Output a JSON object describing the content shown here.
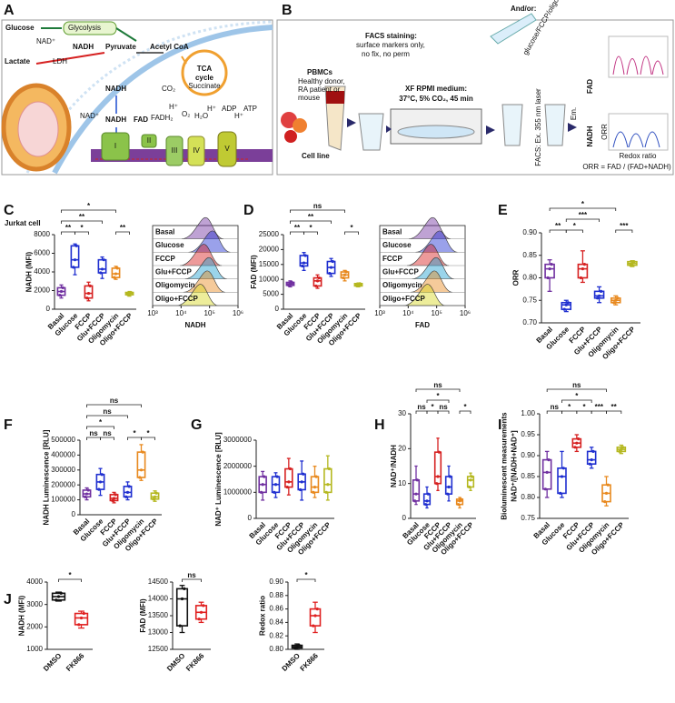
{
  "panel_labels": [
    "A",
    "B",
    "C",
    "D",
    "E",
    "F",
    "G",
    "H",
    "I",
    "J"
  ],
  "panel_a": {
    "glucose": "Glucose",
    "glycolysis": "Glycolysis",
    "nad": "NAD⁺",
    "nadh_top": "NADH",
    "pyruvate": "Pyruvate",
    "lactate": "Lactate",
    "ldh": "LDH",
    "acetyl": "Acetyl CoA",
    "tca1": "TCA",
    "tca2": "cycle",
    "succinate": "Succinate",
    "co2": "CO₂",
    "nadh_mid": "NADH",
    "nadh_low": "NADH",
    "nad_low": "NAD⁺",
    "fad": "FAD",
    "fadh2": "FADH₂",
    "h1": "H⁺",
    "o2": "O₂",
    "h2o": "H₂O",
    "h2": "H⁺",
    "adp": "ADP",
    "h3": "H⁺",
    "atp": "ATP",
    "c1": "I",
    "c2": "II",
    "c3": "III",
    "c4": "IV",
    "c5": "V"
  },
  "panel_b": {
    "pbmc": "PBMCs",
    "donor1": "Healthy donor,",
    "donor2": "RA patient or",
    "donor3": "mouse",
    "cellline": "Cell line",
    "facs1": "FACS staining:",
    "facs2": "surface markers only,",
    "facs3": "no fix, no perm",
    "xf1": "XF RPMI medium:",
    "xf2": "37°C, 5% CO₂, 45 min",
    "andor": "And/or:",
    "treat": "glucose/FCCP/oligo",
    "laser": "FACS: Ex. 355 nm laser",
    "em": "Em.",
    "fad": "FAD",
    "nadh": "NADH",
    "orr": "ORR",
    "redox": "Redox ratio",
    "formula": "ORR = FAD / (FAD+NADH)"
  },
  "chart_data": [
    {
      "type": "box",
      "note": "Jurkat cell",
      "ylabel": "NADH (MFI)",
      "categories": [
        "Basal",
        "Glucose",
        "FCCP",
        "Glu+FCCP",
        "Oligomycin",
        "Oligo+FCCP"
      ],
      "colors": [
        "#7030a0",
        "#1f2fd0",
        "#d62020",
        "#1f2fd0",
        "#e8891e",
        "#b5b820"
      ],
      "boxes": [
        {
          "min": 1200,
          "q1": 1500,
          "median": 1900,
          "q3": 2300,
          "max": 2600
        },
        {
          "min": 3700,
          "q1": 4500,
          "median": 5300,
          "q3": 6800,
          "max": 7000
        },
        {
          "min": 900,
          "q1": 1200,
          "median": 1700,
          "q3": 2500,
          "max": 2900
        },
        {
          "min": 3300,
          "q1": 3900,
          "median": 4300,
          "q3": 5300,
          "max": 5600
        },
        {
          "min": 3200,
          "q1": 3400,
          "median": 3800,
          "q3": 4400,
          "max": 4600
        },
        {
          "min": 1400,
          "q1": 1550,
          "median": 1700,
          "q3": 1800,
          "max": 1900
        }
      ],
      "ylim": [
        0,
        8000
      ],
      "yticks": [
        0,
        2000,
        4000,
        6000,
        8000
      ],
      "annotations": [
        {
          "label": "**",
          "between": [
            "Basal",
            "Glucose"
          ]
        },
        {
          "label": "*",
          "between": [
            "Glucose",
            "FCCP"
          ]
        },
        {
          "label": "**",
          "between": [
            "Oligomycin",
            "Oligo+FCCP"
          ]
        },
        {
          "label": "**",
          "between": [
            "Basal",
            "Glu+FCCP"
          ]
        },
        {
          "label": "*",
          "between": [
            "Basal",
            "Oligomycin"
          ]
        }
      ]
    },
    {
      "type": "ridgeline",
      "xlabel": "NADH",
      "categories": [
        "Basal",
        "Glucose",
        "FCCP",
        "Glu+FCCP",
        "Oligomycin",
        "Oligo+FCCP"
      ],
      "colors": [
        "#7030a0",
        "#1f2fd0",
        "#d62020",
        "#1f9fd0",
        "#e8891e",
        "#d8d820"
      ],
      "xscale": "log",
      "xlim": [
        1000,
        1000000
      ],
      "xticks": [
        {
          "value": 1000,
          "label": "10³"
        },
        {
          "value": 10000,
          "label": "10⁴"
        },
        {
          "value": 100000,
          "label": "10⁵"
        },
        {
          "value": 1000000,
          "label": "10⁶"
        }
      ]
    },
    {
      "type": "box",
      "ylabel": "FAD (MFI)",
      "categories": [
        "Basal",
        "Glucose",
        "FCCP",
        "Glu+FCCP",
        "Oligomycin",
        "Oligo+FCCP"
      ],
      "colors": [
        "#7030a0",
        "#1f2fd0",
        "#d62020",
        "#1f2fd0",
        "#e8891e",
        "#b5b820"
      ],
      "boxes": [
        {
          "min": 7500,
          "q1": 8000,
          "median": 8500,
          "q3": 9000,
          "max": 9500
        },
        {
          "min": 13000,
          "q1": 14500,
          "median": 15500,
          "q3": 18000,
          "max": 19000
        },
        {
          "min": 7000,
          "q1": 7800,
          "median": 9500,
          "q3": 10500,
          "max": 11500
        },
        {
          "min": 11000,
          "q1": 12000,
          "median": 14000,
          "q3": 16000,
          "max": 17000
        },
        {
          "min": 9500,
          "q1": 10500,
          "median": 11500,
          "q3": 12500,
          "max": 13000
        },
        {
          "min": 7500,
          "q1": 7800,
          "median": 8200,
          "q3": 8600,
          "max": 8800
        }
      ],
      "ylim": [
        0,
        25000
      ],
      "yticks": [
        0,
        5000,
        10000,
        15000,
        20000,
        25000
      ],
      "annotations": [
        {
          "label": "**",
          "between": [
            "Basal",
            "Glucose"
          ]
        },
        {
          "label": "*",
          "between": [
            "Glucose",
            "FCCP"
          ]
        },
        {
          "label": "*",
          "between": [
            "Oligomycin",
            "Oligo+FCCP"
          ]
        },
        {
          "label": "**",
          "between": [
            "Basal",
            "Glu+FCCP"
          ]
        },
        {
          "label": "ns",
          "between": [
            "Basal",
            "Oligomycin"
          ]
        }
      ]
    },
    {
      "type": "ridgeline",
      "xlabel": "FAD",
      "categories": [
        "Basal",
        "Glucose",
        "FCCP",
        "Glu+FCCP",
        "Oligomycin",
        "Oligo+FCCP"
      ],
      "colors": [
        "#7030a0",
        "#1f2fd0",
        "#d62020",
        "#1f9fd0",
        "#e8891e",
        "#d8d820"
      ],
      "xscale": "log",
      "xlim": [
        1000,
        1000000
      ],
      "xticks": [
        {
          "value": 1000,
          "label": "10³"
        },
        {
          "value": 10000,
          "label": "10⁴"
        },
        {
          "value": 100000,
          "label": "10⁵"
        },
        {
          "value": 1000000,
          "label": "10⁶"
        }
      ]
    },
    {
      "type": "box",
      "ylabel": "ORR",
      "categories": [
        "Basal",
        "Glucose",
        "FCCP",
        "Glu+FCCP",
        "Oligomycin",
        "Oligo+FCCP"
      ],
      "colors": [
        "#7030a0",
        "#1f2fd0",
        "#d62020",
        "#1f2fd0",
        "#e8891e",
        "#b5b820"
      ],
      "boxes": [
        {
          "min": 0.77,
          "q1": 0.8,
          "median": 0.82,
          "q3": 0.83,
          "max": 0.84
        },
        {
          "min": 0.725,
          "q1": 0.73,
          "median": 0.74,
          "q3": 0.745,
          "max": 0.75
        },
        {
          "min": 0.79,
          "q1": 0.8,
          "median": 0.82,
          "q3": 0.83,
          "max": 0.86
        },
        {
          "min": 0.745,
          "q1": 0.755,
          "median": 0.76,
          "q3": 0.77,
          "max": 0.78
        },
        {
          "min": 0.74,
          "q1": 0.745,
          "median": 0.75,
          "q3": 0.755,
          "max": 0.76
        },
        {
          "min": 0.825,
          "q1": 0.828,
          "median": 0.832,
          "q3": 0.836,
          "max": 0.838
        }
      ],
      "ylim": [
        0.7,
        0.9
      ],
      "yticks": [
        {
          "value": 0.7,
          "label": "0.70"
        },
        0.75,
        {
          "value": 0.8,
          "label": "0.80"
        },
        0.85,
        {
          "value": 0.9,
          "label": "0.90"
        }
      ],
      "annotations": [
        {
          "label": "**",
          "between": [
            "Basal",
            "Glucose"
          ]
        },
        {
          "label": "*",
          "between": [
            "Glucose",
            "FCCP"
          ]
        },
        {
          "label": "***",
          "between": [
            "Oligomycin",
            "Oligo+FCCP"
          ]
        },
        {
          "label": "***",
          "between": [
            "Glucose",
            "Glu+FCCP"
          ]
        },
        {
          "label": "*",
          "between": [
            "Basal",
            "Oligomycin"
          ]
        }
      ]
    },
    {
      "type": "box",
      "ylabel": "NADH Luminescence [RLU]",
      "categories": [
        "Basal",
        "Glucose",
        "FCCP",
        "Glu+FCCP",
        "Oligomycin",
        "Oligo+FCCP"
      ],
      "colors": [
        "#7030a0",
        "#1f2fd0",
        "#d62020",
        "#1f2fd0",
        "#e8891e",
        "#b5b820"
      ],
      "boxes": [
        {
          "min": 100000,
          "q1": 120000,
          "median": 140000,
          "q3": 165000,
          "max": 180000
        },
        {
          "min": 130000,
          "q1": 170000,
          "median": 220000,
          "q3": 270000,
          "max": 310000
        },
        {
          "min": 80000,
          "q1": 95000,
          "median": 110000,
          "q3": 135000,
          "max": 150000
        },
        {
          "min": 100000,
          "q1": 120000,
          "median": 150000,
          "q3": 190000,
          "max": 220000
        },
        {
          "min": 230000,
          "q1": 250000,
          "median": 300000,
          "q3": 420000,
          "max": 470000
        },
        {
          "min": 90000,
          "q1": 105000,
          "median": 120000,
          "q3": 145000,
          "max": 160000
        }
      ],
      "ylim": [
        0,
        500000
      ],
      "yticks": [
        0,
        100000,
        200000,
        300000,
        400000,
        500000
      ],
      "annotations": [
        {
          "label": "ns",
          "between": [
            "Basal",
            "Glucose"
          ]
        },
        {
          "label": "ns",
          "between": [
            "Glucose",
            "FCCP"
          ]
        },
        {
          "label": "*",
          "between": [
            "Glu+FCCP",
            "Oligomycin"
          ]
        },
        {
          "label": "*",
          "between": [
            "Oligomycin",
            "Oligo+FCCP"
          ]
        },
        {
          "label": "*",
          "between": [
            "Basal",
            "FCCP"
          ]
        },
        {
          "label": "ns",
          "between": [
            "Basal",
            "Glu+FCCP"
          ]
        },
        {
          "label": "ns",
          "between": [
            "Basal",
            "Oligomycin"
          ]
        }
      ]
    },
    {
      "type": "box",
      "ylabel": "NAD⁺ Luminescence [RLU]",
      "categories": [
        "Basal",
        "Glucose",
        "FCCP",
        "Glu+FCCP",
        "Oligomycin",
        "Oligo+FCCP"
      ],
      "colors": [
        "#7030a0",
        "#1f2fd0",
        "#d62020",
        "#1f2fd0",
        "#e8891e",
        "#b5b820"
      ],
      "boxes": [
        {
          "min": 700000,
          "q1": 1000000,
          "median": 1300000,
          "q3": 1600000,
          "max": 1800000
        },
        {
          "min": 800000,
          "q1": 1000000,
          "median": 1300000,
          "q3": 1600000,
          "max": 1750000
        },
        {
          "min": 900000,
          "q1": 1200000,
          "median": 1400000,
          "q3": 1900000,
          "max": 2300000
        },
        {
          "min": 700000,
          "q1": 1100000,
          "median": 1400000,
          "q3": 1700000,
          "max": 2200000
        },
        {
          "min": 800000,
          "q1": 1000000,
          "median": 1200000,
          "q3": 1600000,
          "max": 2000000
        },
        {
          "min": 700000,
          "q1": 1000000,
          "median": 1300000,
          "q3": 1900000,
          "max": 2400000
        }
      ],
      "ylim": [
        0,
        3000000
      ],
      "yticks": [
        0,
        1000000,
        2000000,
        3000000
      ],
      "annotations": []
    },
    {
      "type": "box",
      "ylabel": "NAD⁺/NADH",
      "categories": [
        "Basal",
        "Glucose",
        "FCCP",
        "Glu+FCCP",
        "Oligomycin",
        "Oligo+FCCP"
      ],
      "colors": [
        "#7030a0",
        "#1f2fd0",
        "#d62020",
        "#1f2fd0",
        "#e8891e",
        "#b5b820"
      ],
      "boxes": [
        {
          "min": 4,
          "q1": 5,
          "median": 7,
          "q3": 11,
          "max": 15
        },
        {
          "min": 3,
          "q1": 4,
          "median": 5,
          "q3": 7,
          "max": 9
        },
        {
          "min": 8,
          "q1": 10,
          "median": 12,
          "q3": 19,
          "max": 23
        },
        {
          "min": 5,
          "q1": 7,
          "median": 9,
          "q3": 12,
          "max": 15
        },
        {
          "min": 3,
          "q1": 4,
          "median": 5,
          "q3": 5.5,
          "max": 6
        },
        {
          "min": 8,
          "q1": 9,
          "median": 11,
          "q3": 12,
          "max": 13
        }
      ],
      "ylim": [
        0,
        30
      ],
      "yticks": [
        0,
        10,
        20,
        30
      ],
      "annotations": [
        {
          "label": "ns",
          "between": [
            "Basal",
            "Glucose"
          ]
        },
        {
          "label": "*",
          "between": [
            "Glucose",
            "FCCP"
          ]
        },
        {
          "label": "ns",
          "between": [
            "FCCP",
            "Glu+FCCP"
          ]
        },
        {
          "label": "*",
          "between": [
            "Oligomycin",
            "Oligo+FCCP"
          ]
        },
        {
          "label": "*",
          "between": [
            "Glucose",
            "Glu+FCCP"
          ]
        },
        {
          "label": "ns",
          "between": [
            "Basal",
            "Oligomycin"
          ]
        }
      ]
    },
    {
      "type": "box",
      "ylabel": [
        "Bioluminescent measurements",
        "NAD⁺/[NADH+NAD⁺]"
      ],
      "categories": [
        "Basal",
        "Glucose",
        "FCCP",
        "Glu+FCCP",
        "Oligomycin",
        "Oligo+FCCP"
      ],
      "colors": [
        "#7030a0",
        "#1f2fd0",
        "#d62020",
        "#1f2fd0",
        "#e8891e",
        "#b5b820"
      ],
      "boxes": [
        {
          "min": 0.8,
          "q1": 0.82,
          "median": 0.86,
          "q3": 0.89,
          "max": 0.91
        },
        {
          "min": 0.8,
          "q1": 0.81,
          "median": 0.85,
          "q3": 0.87,
          "max": 0.91
        },
        {
          "min": 0.91,
          "q1": 0.92,
          "median": 0.93,
          "q3": 0.94,
          "max": 0.95
        },
        {
          "min": 0.87,
          "q1": 0.88,
          "median": 0.89,
          "q3": 0.91,
          "max": 0.92
        },
        {
          "min": 0.78,
          "q1": 0.79,
          "median": 0.81,
          "q3": 0.83,
          "max": 0.85
        },
        {
          "min": 0.905,
          "q1": 0.91,
          "median": 0.915,
          "q3": 0.92,
          "max": 0.925
        }
      ],
      "ylim": [
        0.75,
        1.0
      ],
      "yticks": [
        0.75,
        {
          "value": 0.8,
          "label": "0.80"
        },
        0.85,
        {
          "value": 0.9,
          "label": "0.90"
        },
        0.95,
        {
          "value": 1.0,
          "label": "1.00"
        }
      ],
      "annotations": [
        {
          "label": "ns",
          "between": [
            "Basal",
            "Glucose"
          ]
        },
        {
          "label": "*",
          "between": [
            "Glucose",
            "FCCP"
          ]
        },
        {
          "label": "*",
          "between": [
            "FCCP",
            "Glu+FCCP"
          ]
        },
        {
          "label": "***",
          "between": [
            "Glu+FCCP",
            "Oligomycin"
          ]
        },
        {
          "label": "**",
          "between": [
            "Oligomycin",
            "Oligo+FCCP"
          ]
        },
        {
          "label": "*",
          "between": [
            "Glucose",
            "Glu+FCCP"
          ]
        },
        {
          "label": "ns",
          "between": [
            "Basal",
            "Oligomycin"
          ]
        }
      ]
    },
    {
      "type": "box",
      "ylabel": "NADH (MFI)",
      "categories": [
        "DMSO",
        "FK866"
      ],
      "colors": [
        "#111111",
        "#e02020"
      ],
      "boxes": [
        {
          "min": 3150,
          "q1": 3200,
          "median": 3350,
          "q3": 3500,
          "max": 3550
        },
        {
          "min": 1950,
          "q1": 2100,
          "median": 2400,
          "q3": 2600,
          "max": 2700
        }
      ],
      "ylim": [
        1000,
        4000
      ],
      "yticks": [
        1000,
        2000,
        3000,
        4000
      ],
      "annotations": [
        {
          "label": "*",
          "between": [
            "DMSO",
            "FK866"
          ]
        }
      ]
    },
    {
      "type": "box",
      "ylabel": "FAD (MFI)",
      "categories": [
        "DMSO",
        "FK866"
      ],
      "colors": [
        "#111111",
        "#e02020"
      ],
      "boxes": [
        {
          "min": 13000,
          "q1": 13200,
          "median": 14000,
          "q3": 14300,
          "max": 14400
        },
        {
          "min": 13300,
          "q1": 13400,
          "median": 13600,
          "q3": 13800,
          "max": 13900
        }
      ],
      "ylim": [
        12500,
        14500
      ],
      "yticks": [
        12500,
        13000,
        13500,
        14000,
        14500
      ],
      "annotations": [
        {
          "label": "ns",
          "between": [
            "DMSO",
            "FK866"
          ]
        }
      ]
    },
    {
      "type": "box",
      "ylabel": "Redox ratio",
      "categories": [
        "DMSO",
        "FK866"
      ],
      "colors": [
        "#111111",
        "#e02020"
      ],
      "boxes": [
        {
          "min": 0.8,
          "q1": 0.802,
          "median": 0.804,
          "q3": 0.806,
          "max": 0.808
        },
        {
          "min": 0.825,
          "q1": 0.835,
          "median": 0.85,
          "q3": 0.86,
          "max": 0.87
        }
      ],
      "ylim": [
        0.8,
        0.9
      ],
      "yticks": [
        {
          "value": 0.8,
          "label": "0.80"
        },
        0.82,
        0.84,
        0.86,
        0.88,
        {
          "value": 0.9,
          "label": "0.90"
        }
      ],
      "annotations": [
        {
          "label": "*",
          "between": [
            "DMSO",
            "FK866"
          ]
        }
      ]
    }
  ]
}
